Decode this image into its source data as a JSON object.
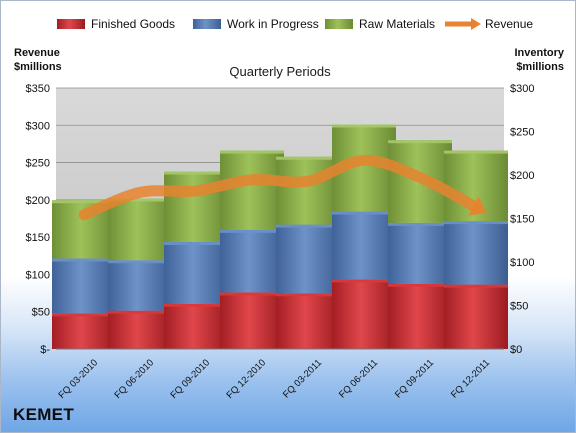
{
  "chart_data": {
    "type": "bar",
    "stacked": true,
    "title": "Quarterly Periods",
    "ylabel_left": "Revenue $millions",
    "ylabel_right": "Inventory $millions",
    "ylim_left": [
      0,
      350
    ],
    "ylim_right": [
      0,
      300
    ],
    "y_ticks_left": [
      "$-",
      "$50",
      "$100",
      "$150",
      "$200",
      "$250",
      "$300",
      "$350"
    ],
    "y_ticks_right": [
      "$0",
      "$50",
      "$100",
      "$150",
      "$200",
      "$250",
      "$300"
    ],
    "grid": true,
    "legend_position": "top",
    "categories": [
      "FQ 03-2010",
      "FQ 06-2010",
      "FQ 09-2010",
      "FQ 12-2010",
      "FQ 03-2011",
      "FQ 06-2011",
      "FQ 09-2011",
      "FQ 12-2011"
    ],
    "series": [
      {
        "name": "Finished Goods",
        "axis": "right",
        "color": "#c0272d",
        "values": [
          41,
          44,
          52,
          65,
          64,
          80,
          75,
          74
        ]
      },
      {
        "name": "Work in Progress",
        "axis": "right",
        "color": "#4f77b3",
        "values": [
          63,
          58,
          71,
          72,
          79,
          78,
          70,
          73
        ]
      },
      {
        "name": "Raw Materials",
        "axis": "right",
        "color": "#86aa46",
        "values": [
          67,
          71,
          81,
          91,
          78,
          100,
          95,
          81
        ]
      },
      {
        "name": "Revenue",
        "axis": "left",
        "type": "line",
        "color": "#e8822f",
        "values": [
          180,
          210,
          212,
          227,
          225,
          253,
          230,
          190
        ]
      }
    ]
  },
  "brand": {
    "name": "KEMET"
  }
}
